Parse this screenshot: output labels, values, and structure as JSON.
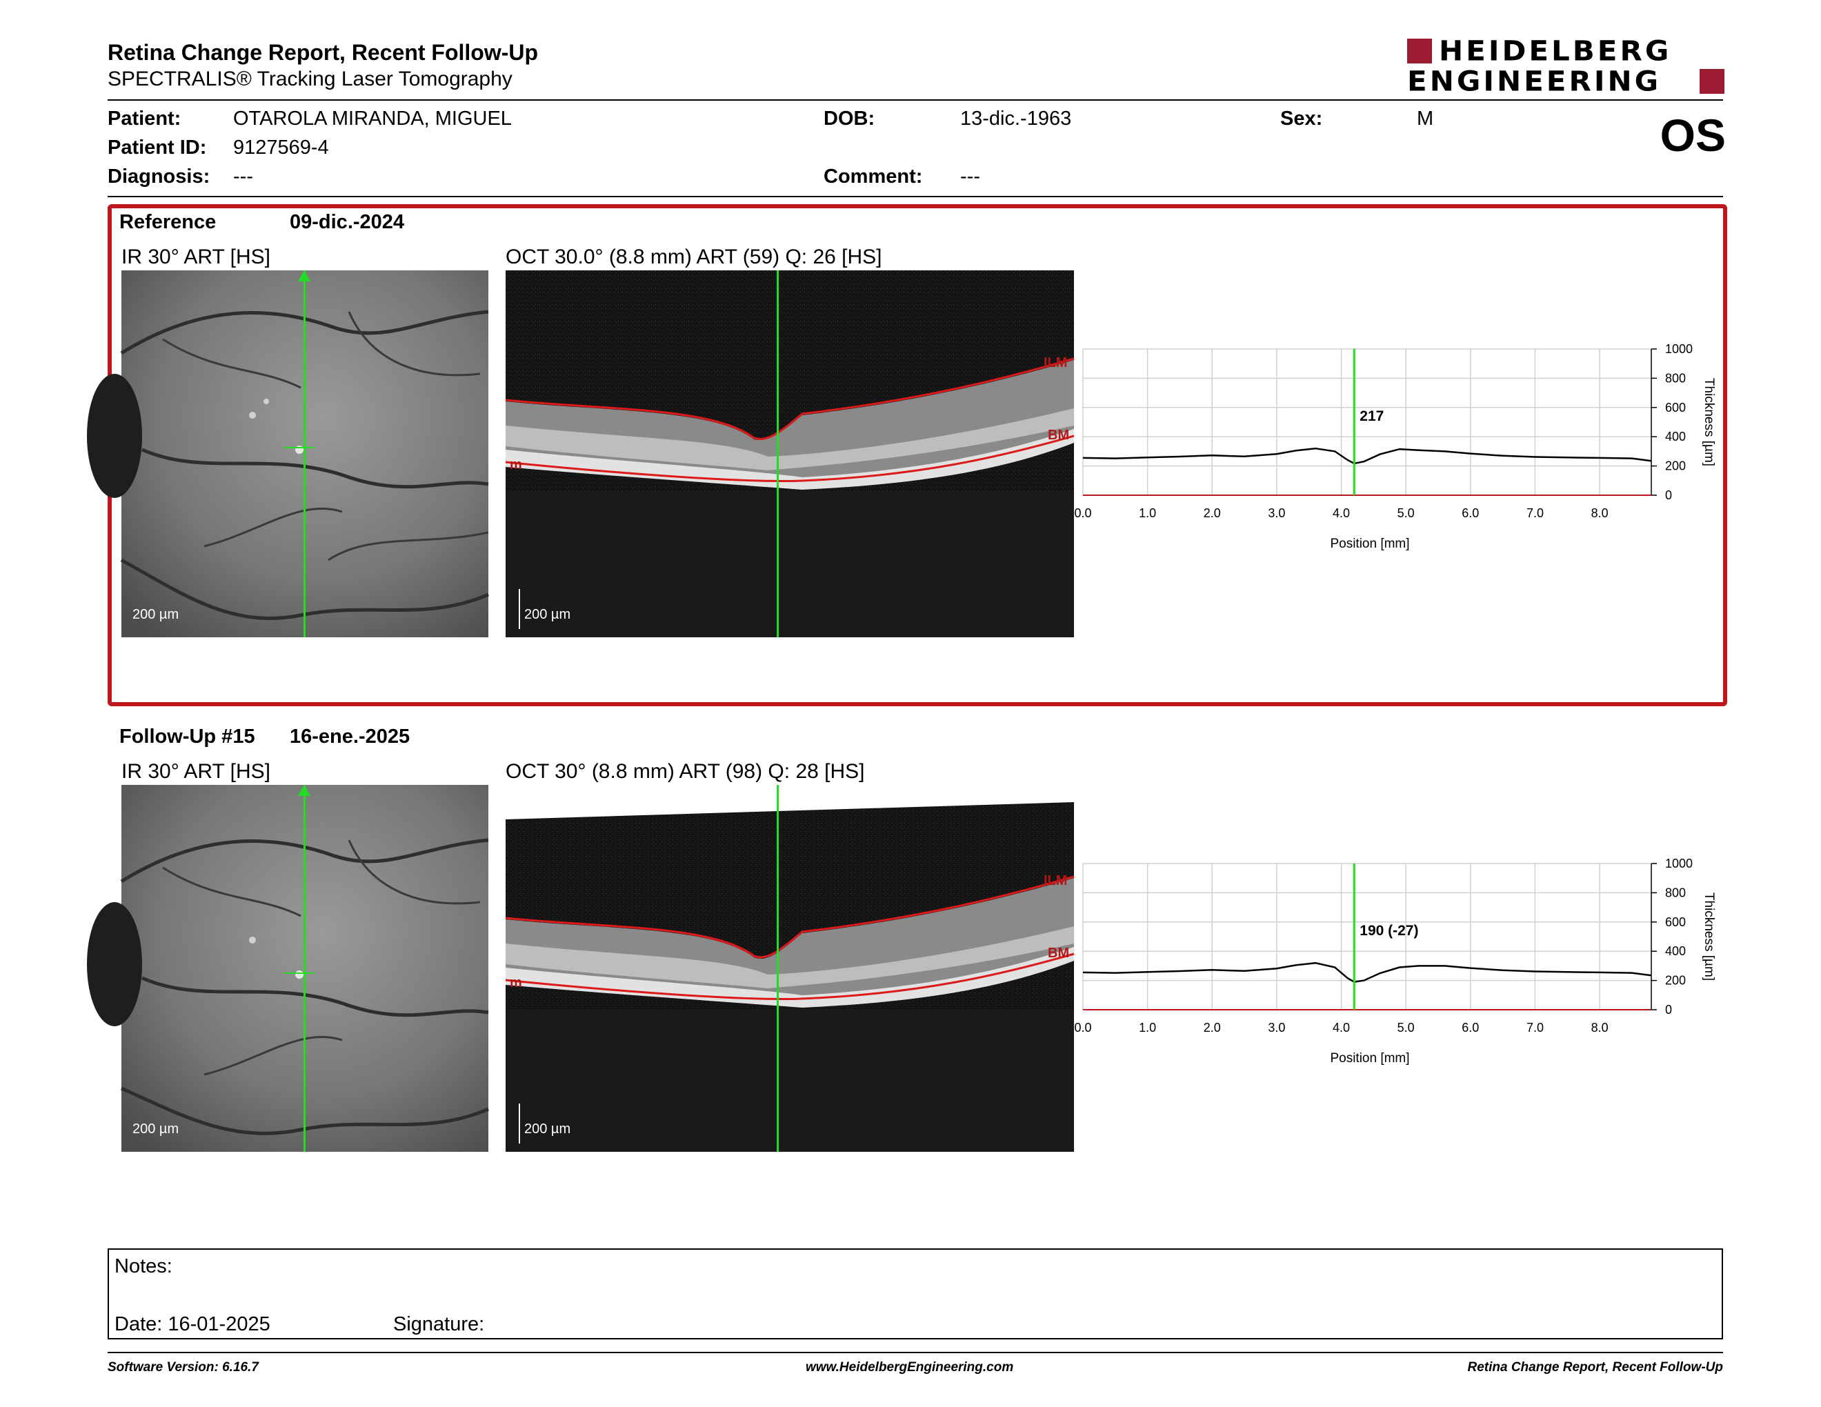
{
  "header": {
    "title": "Retina Change Report, Recent Follow-Up",
    "subtitle": "SPECTRALIS® Tracking Laser Tomography",
    "logo_line1": "HEIDELBERG",
    "logo_line2": "ENGINEERING",
    "brand_color": "#9b1b30"
  },
  "patient": {
    "patient_label": "Patient:",
    "patient_value": "OTAROLA MIRANDA, MIGUEL",
    "dob_label": "DOB:",
    "dob_value": "13-dic.-1963",
    "sex_label": "Sex:",
    "sex_value": "M",
    "id_label": "Patient ID:",
    "id_value": "9127569-4",
    "diagnosis_label": "Diagnosis:",
    "diagnosis_value": "---",
    "comment_label": "Comment:",
    "comment_value": "---",
    "eye": "OS"
  },
  "reference": {
    "label": "Reference",
    "date": "09-dic.-2024",
    "ir_title": "IR 30° ART [HS]",
    "oct_title": "OCT 30.0° (8.8 mm) ART (59) Q: 26 [HS]",
    "scale_ir": "200 µm",
    "scale_oct": "200 µm",
    "ilm_label": "ILM",
    "bm_label": "BM",
    "m_label": "m",
    "thickness_label": "217",
    "frame_color": "#c0171f"
  },
  "followup": {
    "label": "Follow-Up #15",
    "date": "16-ene.-2025",
    "ir_title": "IR 30° ART [HS]",
    "oct_title": "OCT 30° (8.8 mm) ART (98) Q: 28 [HS]",
    "scale_ir": "200 µm",
    "scale_oct": "200 µm",
    "ilm_label": "ILM",
    "bm_label": "BM",
    "m_label": "m",
    "thickness_label": "190 (-27)"
  },
  "chart_data": [
    {
      "type": "line",
      "xlabel": "Position [mm]",
      "ylabel": "Thickness [µm]",
      "xlim": [
        0,
        8.8
      ],
      "ylim": [
        0,
        1000
      ],
      "xticks": [
        "0.0",
        "1.0",
        "2.0",
        "3.0",
        "4.0",
        "5.0",
        "6.0",
        "7.0",
        "8.0"
      ],
      "yticks": [
        "0",
        "200",
        "400",
        "600",
        "800",
        "1000"
      ],
      "grid": true,
      "marker_x": 4.2,
      "x": [
        0,
        0.5,
        1.0,
        1.5,
        2.0,
        2.5,
        3.0,
        3.3,
        3.6,
        3.9,
        4.1,
        4.2,
        4.35,
        4.6,
        4.9,
        5.2,
        5.6,
        6.0,
        6.5,
        7.0,
        7.5,
        8.0,
        8.5,
        8.8
      ],
      "y": [
        255,
        252,
        258,
        264,
        272,
        265,
        282,
        305,
        320,
        300,
        240,
        217,
        230,
        280,
        315,
        308,
        300,
        285,
        270,
        262,
        258,
        255,
        252,
        235
      ]
    },
    {
      "type": "line",
      "xlabel": "Position [mm]",
      "ylabel": "Thickness [µm]",
      "xlim": [
        0,
        8.8
      ],
      "ylim": [
        0,
        1000
      ],
      "xticks": [
        "0.0",
        "1.0",
        "2.0",
        "3.0",
        "4.0",
        "5.0",
        "6.0",
        "7.0",
        "8.0"
      ],
      "yticks": [
        "0",
        "200",
        "400",
        "600",
        "800",
        "1000"
      ],
      "grid": true,
      "marker_x": 4.2,
      "x": [
        0,
        0.5,
        1.0,
        1.5,
        2.0,
        2.5,
        3.0,
        3.3,
        3.6,
        3.9,
        4.1,
        4.2,
        4.35,
        4.6,
        4.9,
        5.2,
        5.6,
        6.0,
        6.5,
        7.0,
        7.5,
        8.0,
        8.5,
        8.8
      ],
      "y": [
        255,
        252,
        258,
        264,
        272,
        265,
        282,
        305,
        320,
        290,
        215,
        190,
        200,
        250,
        290,
        300,
        300,
        285,
        270,
        262,
        258,
        255,
        252,
        235
      ]
    }
  ],
  "notes": {
    "notes_label": "Notes:",
    "date_label": "Date: 16-01-2025",
    "signature_label": "Signature:"
  },
  "footer": {
    "software": "Software Version: 6.16.7",
    "website": "www.HeidelbergEngineering.com",
    "report_name": "Retina Change Report, Recent Follow-Up"
  }
}
